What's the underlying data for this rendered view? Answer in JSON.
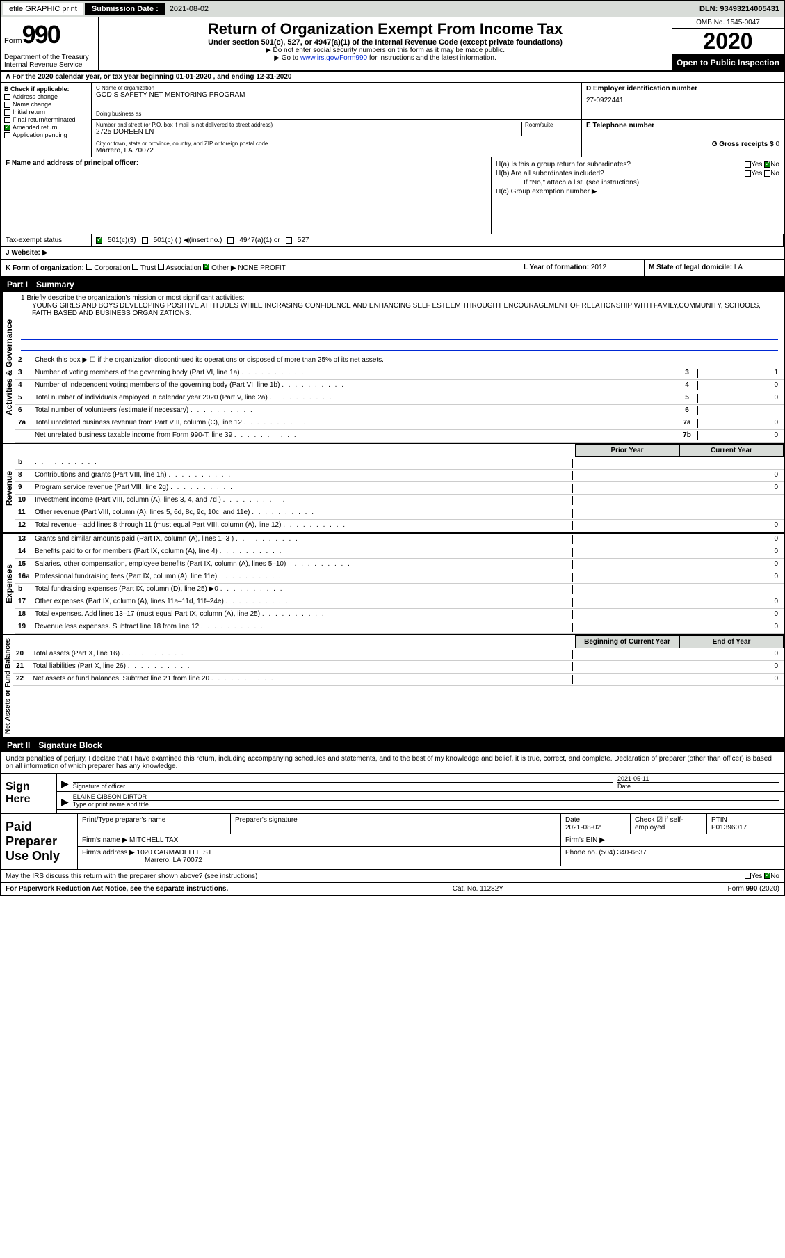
{
  "topbar": {
    "efile": "efile GRAPHIC print",
    "subdate_label": "Submission Date :",
    "subdate": "2021-08-02",
    "dln_label": "DLN:",
    "dln": "93493214005431"
  },
  "header": {
    "form_prefix": "Form",
    "form_num": "990",
    "dept": "Department of the Treasury\nInternal Revenue Service",
    "title": "Return of Organization Exempt From Income Tax",
    "sub": "Under section 501(c), 527, or 4947(a)(1) of the Internal Revenue Code (except private foundations)",
    "note1": "▶ Do not enter social security numbers on this form as it may be made public.",
    "note2_pre": "▶ Go to ",
    "note2_link": "www.irs.gov/Form990",
    "note2_post": " for instructions and the latest information.",
    "omb": "OMB No. 1545-0047",
    "year": "2020",
    "inspect": "Open to Public Inspection"
  },
  "row_a": "A For the 2020 calendar year, or tax year beginning 01-01-2020     , and ending 12-31-2020",
  "col_b": {
    "label": "B Check if applicable:",
    "items": [
      "Address change",
      "Name change",
      "Initial return",
      "Final return/terminated",
      "Amended return",
      "Application pending"
    ],
    "checked_idx": 4
  },
  "section_c": {
    "name_lbl": "C Name of organization",
    "name": "GOD S SAFETY NET MENTORING PROGRAM",
    "dba_lbl": "Doing business as",
    "addr_lbl": "Number and street (or P.O. box if mail is not delivered to street address)",
    "room_lbl": "Room/suite",
    "addr": "2725 DOREEN LN",
    "city_lbl": "City or town, state or province, country, and ZIP or foreign postal code",
    "city": "Marrero, LA  70072"
  },
  "section_d": {
    "lbl": "D Employer identification number",
    "val": "27-0922441"
  },
  "section_e": {
    "lbl": "E Telephone number",
    "val": ""
  },
  "section_g": {
    "lbl": "G Gross receipts $",
    "val": "0"
  },
  "section_f": {
    "lbl": "F  Name and address of principal officer:",
    "val": ""
  },
  "section_h": {
    "ha": "H(a)  Is this a group return for subordinates?",
    "hb": "H(b)  Are all subordinates included?",
    "hb_note": "If \"No,\" attach a list. (see instructions)",
    "hc": "H(c)  Group exemption number ▶",
    "yes": "Yes",
    "no": "No"
  },
  "taxex": {
    "lbl": "Tax-exempt status:",
    "opts": [
      "501(c)(3)",
      "501(c) (  ) ◀(insert no.)",
      "4947(a)(1) or",
      "527"
    ]
  },
  "website": {
    "lbl": "J  Website: ▶",
    "val": ""
  },
  "row_k": {
    "k": "K Form of organization:",
    "opts": [
      "Corporation",
      "Trust",
      "Association",
      "Other ▶"
    ],
    "other_val": "NONE PROFIT",
    "l_lbl": "L Year of formation:",
    "l_val": "2012",
    "m_lbl": "M State of legal domicile:",
    "m_val": "LA"
  },
  "part1": {
    "no": "Part I",
    "title": "Summary"
  },
  "part2": {
    "no": "Part II",
    "title": "Signature Block"
  },
  "mission": {
    "l1": "1  Briefly describe the organization's mission or most significant activities:",
    "text": "YOUNG GIRLS AND BOYS DEVELOPING POSITIVE ATTITUDES WHILE INCRASING CONFIDENCE AND ENHANCING SELF ESTEEM THROUGHT ENCOURAGEMENT OF RELATIONSHIP WITH FAMILY,COMMUNITY, SCHOOLS, FAITH BASED AND BUSINESS ORGANIZATIONS."
  },
  "lines_ag": [
    {
      "n": "2",
      "t": "Check this box ▶ ☐ if the organization discontinued its operations or disposed of more than 25% of its net assets."
    },
    {
      "n": "3",
      "t": "Number of voting members of the governing body (Part VI, line 1a)",
      "box": "3",
      "v": "1"
    },
    {
      "n": "4",
      "t": "Number of independent voting members of the governing body (Part VI, line 1b)",
      "box": "4",
      "v": "0"
    },
    {
      "n": "5",
      "t": "Total number of individuals employed in calendar year 2020 (Part V, line 2a)",
      "box": "5",
      "v": "0"
    },
    {
      "n": "6",
      "t": "Total number of volunteers (estimate if necessary)",
      "box": "6",
      "v": ""
    },
    {
      "n": "7a",
      "t": "Total unrelated business revenue from Part VIII, column (C), line 12",
      "box": "7a",
      "v": "0"
    },
    {
      "n": "",
      "t": "Net unrelated business taxable income from Form 990-T, line 39",
      "box": "7b",
      "v": "0"
    }
  ],
  "col_hdrs": {
    "prior": "Prior Year",
    "current": "Current Year"
  },
  "lines_rev": [
    {
      "n": "b",
      "t": "",
      "v1": "",
      "v2": "",
      "shade": false
    },
    {
      "n": "8",
      "t": "Contributions and grants (Part VIII, line 1h)",
      "v1": "",
      "v2": "0"
    },
    {
      "n": "9",
      "t": "Program service revenue (Part VIII, line 2g)",
      "v1": "",
      "v2": "0"
    },
    {
      "n": "10",
      "t": "Investment income (Part VIII, column (A), lines 3, 4, and 7d )",
      "v1": "",
      "v2": ""
    },
    {
      "n": "11",
      "t": "Other revenue (Part VIII, column (A), lines 5, 6d, 8c, 9c, 10c, and 11e)",
      "v1": "",
      "v2": ""
    },
    {
      "n": "12",
      "t": "Total revenue—add lines 8 through 11 (must equal Part VIII, column (A), line 12)",
      "v1": "",
      "v2": "0"
    }
  ],
  "lines_exp": [
    {
      "n": "13",
      "t": "Grants and similar amounts paid (Part IX, column (A), lines 1–3 )",
      "v1": "",
      "v2": "0"
    },
    {
      "n": "14",
      "t": "Benefits paid to or for members (Part IX, column (A), line 4)",
      "v1": "",
      "v2": "0"
    },
    {
      "n": "15",
      "t": "Salaries, other compensation, employee benefits (Part IX, column (A), lines 5–10)",
      "v1": "",
      "v2": "0"
    },
    {
      "n": "16a",
      "t": "Professional fundraising fees (Part IX, column (A), line 11e)",
      "v1": "",
      "v2": "0"
    },
    {
      "n": "b",
      "t": "Total fundraising expenses (Part IX, column (D), line 25) ▶0",
      "v1": "shade",
      "v2": "shade"
    },
    {
      "n": "17",
      "t": "Other expenses (Part IX, column (A), lines 11a–11d, 11f–24e)",
      "v1": "",
      "v2": "0"
    },
    {
      "n": "18",
      "t": "Total expenses. Add lines 13–17 (must equal Part IX, column (A), line 25)",
      "v1": "",
      "v2": "0"
    },
    {
      "n": "19",
      "t": "Revenue less expenses. Subtract line 18 from line 12",
      "v1": "",
      "v2": "0"
    }
  ],
  "col_hdrs2": {
    "boy": "Beginning of Current Year",
    "eoy": "End of Year"
  },
  "lines_na": [
    {
      "n": "20",
      "t": "Total assets (Part X, line 16)",
      "v1": "",
      "v2": "0"
    },
    {
      "n": "21",
      "t": "Total liabilities (Part X, line 26)",
      "v1": "",
      "v2": "0"
    },
    {
      "n": "22",
      "t": "Net assets or fund balances. Subtract line 21 from line 20",
      "v1": "",
      "v2": "0"
    }
  ],
  "sig": {
    "declare": "Under penalties of perjury, I declare that I have examined this return, including accompanying schedules and statements, and to the best of my knowledge and belief, it is true, correct, and complete. Declaration of preparer (other than officer) is based on all information of which preparer has any knowledge.",
    "here": "Sign Here",
    "sig_lbl": "Signature of officer",
    "date_lbl": "Date",
    "date": "2021-05-11",
    "name": "ELAINE GIBSON DIRTOR",
    "name_lbl": "Type or print name and title"
  },
  "prep": {
    "lbl": "Paid Preparer Use Only",
    "h1": "Print/Type preparer's name",
    "h2": "Preparer's signature",
    "h3": "Date",
    "h4": "Check ☑ if self-employed",
    "h5": "PTIN",
    "date": "2021-08-02",
    "ptin": "P01396017",
    "firm_lbl": "Firm's name  ▶",
    "firm": "MITCHELL TAX",
    "ein_lbl": "Firm's EIN ▶",
    "addr_lbl": "Firm's address ▶",
    "addr1": "1020 CARMADELLE ST",
    "addr2": "Marrero, LA  70072",
    "phone_lbl": "Phone no.",
    "phone": "(504) 340-6637"
  },
  "discuss": "May the IRS discuss this return with the preparer shown above? (see instructions)",
  "footer": {
    "l": "For Paperwork Reduction Act Notice, see the separate instructions.",
    "m": "Cat. No. 11282Y",
    "r": "Form 990 (2020)"
  },
  "vtabs": {
    "ag": "Activities & Governance",
    "rev": "Revenue",
    "exp": "Expenses",
    "na": "Net Assets or Fund Balances"
  }
}
